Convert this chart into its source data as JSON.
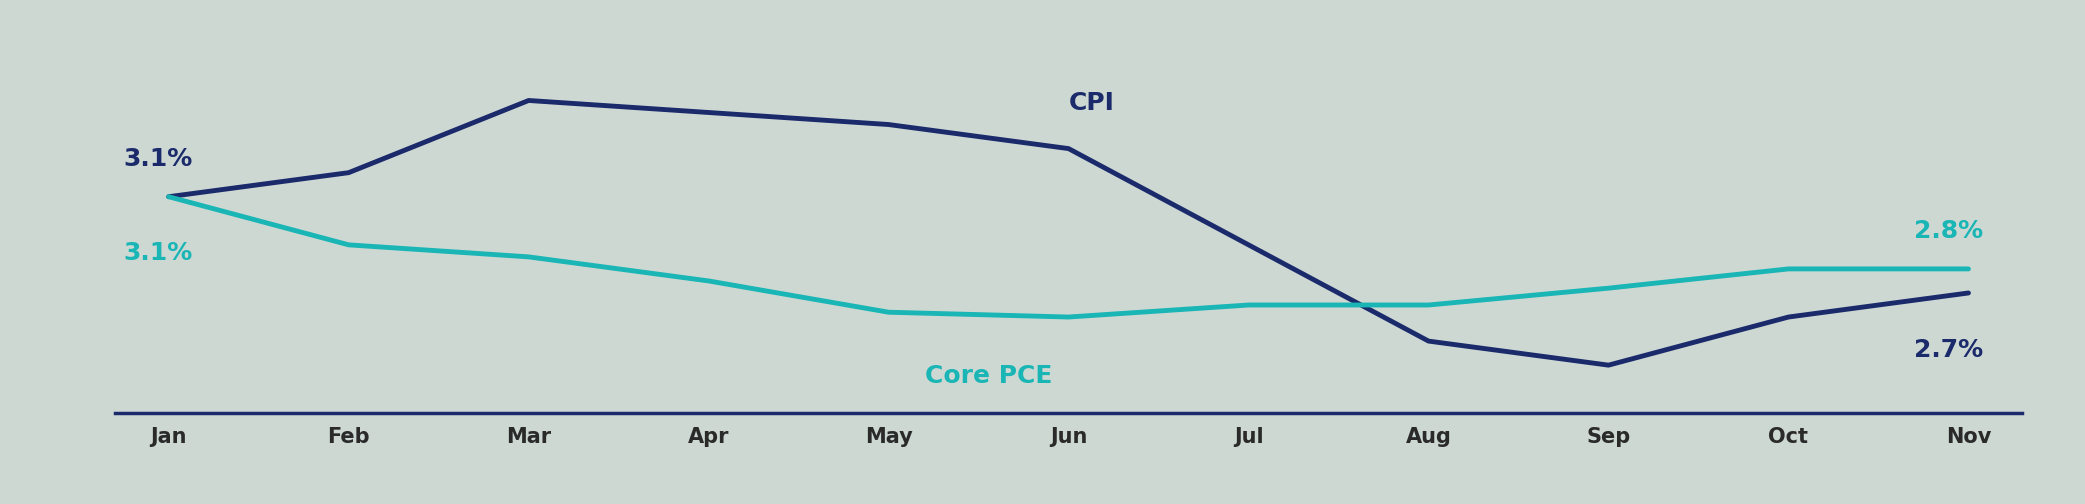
{
  "months": [
    "Jan",
    "Feb",
    "Mar",
    "Apr",
    "May",
    "Jun",
    "Jul",
    "Aug",
    "Sep",
    "Oct",
    "Nov"
  ],
  "cpi": [
    3.1,
    3.2,
    3.5,
    3.45,
    3.4,
    3.3,
    2.9,
    2.5,
    2.4,
    2.6,
    2.7
  ],
  "core_pce": [
    3.1,
    2.9,
    2.85,
    2.75,
    2.62,
    2.6,
    2.65,
    2.65,
    2.72,
    2.8,
    2.8
  ],
  "cpi_color": "#1b2a6b",
  "core_pce_color": "#1ab5b5",
  "background_color": "#cdd8d3",
  "cpi_label": "CPI",
  "core_pce_label": "Core PCE",
  "cpi_start_label": "3.1%",
  "core_pce_start_label": "3.1%",
  "cpi_end_label": "2.7%",
  "core_pce_end_label": "2.8%",
  "ylim_min": 2.2,
  "ylim_max": 3.75,
  "line_width": 3.5,
  "axis_label_color": "#2a2a2a",
  "tick_label_fontsize": 15,
  "ylabel_fontsize": 14,
  "annotation_fontsize_cpi": 18,
  "annotation_fontsize_pce": 18,
  "series_label_fontsize_cpi": 18,
  "series_label_fontsize_pce": 18
}
